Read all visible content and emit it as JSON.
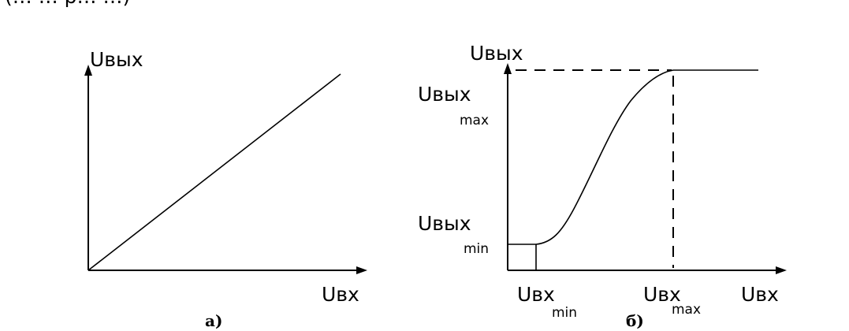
{
  "top_text_fragment": "(… … р… …)",
  "diagram_a": {
    "y_label": "Uвых",
    "x_label": "Uвх",
    "caption": "а)"
  },
  "diagram_b": {
    "y_label": "Uвых",
    "x_label": "Uвх",
    "y_max_main": "Uвых",
    "y_max_sub": "max",
    "y_min_main": "Uвых",
    "y_min_sub": "min",
    "x_min_main": "Uвх",
    "x_min_sub": "min",
    "x_max_main": "Uвх",
    "x_max_sub": "max",
    "caption": "б)"
  }
}
